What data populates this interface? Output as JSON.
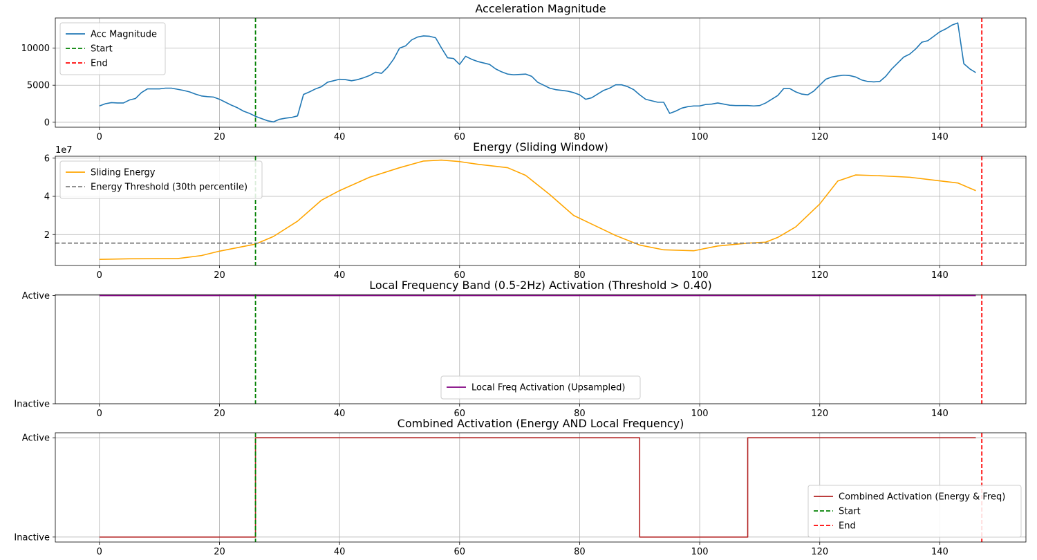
{
  "chart_data": [
    {
      "type": "line",
      "title": "Acceleration Magnitude",
      "xlim": [
        -7.35,
        154.35
      ],
      "ylim": [
        -670,
        14070
      ],
      "xticks": [
        0,
        20,
        40,
        60,
        80,
        100,
        120,
        140
      ],
      "yticks": [
        0,
        5000,
        10000
      ],
      "ytick_labels": [
        "0",
        "5000",
        "10000"
      ],
      "grid": true,
      "legend_position": "upper-left",
      "series": [
        {
          "name": "Acc Magnitude",
          "color": "#1f77b4",
          "style": "solid",
          "x_start": 0,
          "x_step": 1,
          "values": [
            2200,
            2500,
            2650,
            2600,
            2600,
            3000,
            3200,
            4000,
            4500,
            4500,
            4500,
            4600,
            4600,
            4450,
            4300,
            4100,
            3800,
            3550,
            3450,
            3400,
            3100,
            2700,
            2300,
            1950,
            1500,
            1200,
            800,
            500,
            200,
            50,
            400,
            550,
            650,
            850,
            3750,
            4100,
            4500,
            4800,
            5400,
            5600,
            5800,
            5750,
            5600,
            5750,
            6000,
            6300,
            6750,
            6600,
            7400,
            8500,
            10000,
            10300,
            11100,
            11500,
            11650,
            11600,
            11400,
            10000,
            8700,
            8600,
            7800,
            8900,
            8500,
            8200,
            8000,
            7800,
            7200,
            6800,
            6500,
            6400,
            6450,
            6500,
            6200,
            5400,
            5000,
            4600,
            4400,
            4300,
            4200,
            4000,
            3700,
            3100,
            3300,
            3800,
            4300,
            4600,
            5050,
            5050,
            4800,
            4400,
            3700,
            3100,
            2900,
            2700,
            2700,
            1200,
            1500,
            1900,
            2100,
            2200,
            2200,
            2400,
            2450,
            2600,
            2450,
            2300,
            2250,
            2250,
            2250,
            2200,
            2250,
            2600,
            3100,
            3600,
            4550,
            4550,
            4100,
            3800,
            3700,
            4200,
            5000,
            5800,
            6100,
            6250,
            6350,
            6300,
            6100,
            5700,
            5500,
            5450,
            5500,
            6200,
            7200,
            8000,
            8800,
            9200,
            9900,
            10800,
            11000,
            11600,
            12200,
            12600,
            13100,
            13400,
            7900,
            7200,
            6700
          ]
        },
        {
          "name": "Start",
          "color": "#008000",
          "style": "dashed",
          "vline": 26
        },
        {
          "name": "End",
          "color": "#ff0000",
          "style": "dashed",
          "vline": 147
        }
      ]
    },
    {
      "type": "line",
      "title": "Energy (Sliding Window)",
      "offset_text": "1e7",
      "xlim": [
        -7.35,
        154.35
      ],
      "ylim": [
        3800000,
        61000000
      ],
      "xticks": [
        0,
        20,
        40,
        60,
        80,
        100,
        120,
        140
      ],
      "yticks": [
        20000000,
        40000000,
        60000000
      ],
      "ytick_labels": [
        "2",
        "4",
        "6"
      ],
      "grid": true,
      "legend_position": "upper-left",
      "series": [
        {
          "name": "Sliding Energy",
          "color": "#ffa500",
          "style": "solid",
          "points": [
            [
              0,
              7000000
            ],
            [
              5,
              7300000
            ],
            [
              13,
              7400000
            ],
            [
              17,
              9000000
            ],
            [
              20,
              11300000
            ],
            [
              26,
              15000000
            ],
            [
              29,
              19000000
            ],
            [
              33,
              27000000
            ],
            [
              37,
              38000000
            ],
            [
              40,
              43000000
            ],
            [
              45,
              50000000
            ],
            [
              50,
              55000000
            ],
            [
              54,
              58500000
            ],
            [
              57,
              59000000
            ],
            [
              60,
              58200000
            ],
            [
              63,
              56800000
            ],
            [
              68,
              55000000
            ],
            [
              71,
              51000000
            ],
            [
              75,
              41000000
            ],
            [
              79,
              30000000
            ],
            [
              82,
              25500000
            ],
            [
              86,
              19500000
            ],
            [
              90,
              14500000
            ],
            [
              94,
              12000000
            ],
            [
              99,
              11500000
            ],
            [
              103,
              14000000
            ],
            [
              108,
              15500000
            ],
            [
              111,
              16000000
            ],
            [
              113,
              18500000
            ],
            [
              116,
              24000000
            ],
            [
              120,
              36000000
            ],
            [
              123,
              48000000
            ],
            [
              126,
              51200000
            ],
            [
              130,
              50800000
            ],
            [
              135,
              50000000
            ],
            [
              139,
              48500000
            ],
            [
              143,
              47000000
            ],
            [
              146,
              43000000
            ]
          ]
        },
        {
          "name": "Energy Threshold (30th percentile)",
          "color": "#808080",
          "style": "dashed",
          "hline": 15500000
        },
        {
          "name": "Start",
          "color": "#008000",
          "style": "dashed",
          "vline": 26,
          "in_legend": false
        },
        {
          "name": "End",
          "color": "#ff0000",
          "style": "dashed",
          "vline": 147,
          "in_legend": false
        }
      ]
    },
    {
      "type": "line",
      "title": "Local Frequency Band (0.5-2Hz) Activation (Threshold > 0.40)",
      "xlim": [
        -7.35,
        154.35
      ],
      "ylim": [
        0,
        1.01
      ],
      "xticks": [
        0,
        20,
        40,
        60,
        80,
        100,
        120,
        140
      ],
      "yticks": [
        0,
        1
      ],
      "ytick_labels": [
        "Inactive",
        "Active"
      ],
      "grid": true,
      "legend_position": "lower-center",
      "series": [
        {
          "name": "Local Freq Activation (Upsampled)",
          "color": "#800080",
          "style": "solid",
          "points": [
            [
              0,
              1
            ],
            [
              146,
              1
            ]
          ]
        },
        {
          "name": "Start",
          "color": "#008000",
          "style": "dashed",
          "vline": 26,
          "in_legend": false
        },
        {
          "name": "End",
          "color": "#ff0000",
          "style": "dashed",
          "vline": 147,
          "in_legend": false
        }
      ]
    },
    {
      "type": "line",
      "title": "Combined Activation (Energy AND Local Frequency)",
      "xlim": [
        -7.35,
        154.35
      ],
      "ylim": [
        -0.05,
        1.05
      ],
      "xticks": [
        0,
        20,
        40,
        60,
        80,
        100,
        120,
        140
      ],
      "yticks": [
        0,
        1
      ],
      "ytick_labels": [
        "Inactive",
        "Active"
      ],
      "grid": true,
      "legend_position": "lower-right",
      "series": [
        {
          "name": "Combined Activation (Energy & Freq)",
          "color": "#b22222",
          "style": "solid",
          "points": [
            [
              0,
              0
            ],
            [
              26,
              0
            ],
            [
              26,
              1
            ],
            [
              90,
              1
            ],
            [
              90,
              0
            ],
            [
              108,
              0
            ],
            [
              108,
              1
            ],
            [
              146,
              1
            ]
          ]
        },
        {
          "name": "Start",
          "color": "#008000",
          "style": "dashed",
          "vline": 26
        },
        {
          "name": "End",
          "color": "#ff0000",
          "style": "dashed",
          "vline": 147
        }
      ]
    }
  ]
}
